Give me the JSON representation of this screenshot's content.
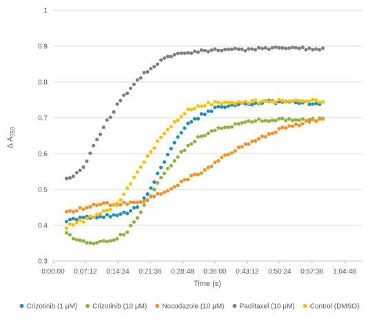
{
  "chart_data": {
    "type": "scatter",
    "title": "",
    "xlabel": "Time (s)",
    "ylabel": "Δ A350",
    "ylabel_main": "Δ A",
    "ylabel_sub": "350",
    "x_unit": "h:mm:ss",
    "xlim": [
      0,
      4128
    ],
    "ylim": [
      0.3,
      1.0
    ],
    "x_ticks": [
      {
        "value": 0,
        "label": "0:00:00"
      },
      {
        "value": 432,
        "label": "0:07:12"
      },
      {
        "value": 864,
        "label": "0:14:24"
      },
      {
        "value": 1296,
        "label": "0:21:36"
      },
      {
        "value": 1728,
        "label": "0:28:48"
      },
      {
        "value": 2160,
        "label": "0:36:00"
      },
      {
        "value": 2592,
        "label": "0:43:12"
      },
      {
        "value": 3024,
        "label": "0:50:24"
      },
      {
        "value": 3456,
        "label": "0:57:36"
      },
      {
        "value": 3888,
        "label": "1:04:48"
      }
    ],
    "y_ticks": [
      {
        "value": 0.3,
        "label": "0.3"
      },
      {
        "value": 0.4,
        "label": "0.4"
      },
      {
        "value": 0.5,
        "label": "0.5"
      },
      {
        "value": 0.6,
        "label": "0.6"
      },
      {
        "value": 0.7,
        "label": "0.7"
      },
      {
        "value": 0.8,
        "label": "0.8"
      },
      {
        "value": 0.9,
        "label": "0.9"
      },
      {
        "value": 1.0,
        "label": "1"
      }
    ],
    "grid": "horizontal",
    "legend_position": "bottom",
    "series": [
      {
        "name": "Crizotinib (1 μM)",
        "color": "#1f8fc1",
        "x": [
          180,
          420,
          660,
          900,
          1080,
          1200,
          1320,
          1440,
          1560,
          1680,
          1800,
          1920,
          2040,
          2160,
          2400,
          2640,
          2880,
          3120,
          3360,
          3600
        ],
        "y": [
          0.415,
          0.42,
          0.425,
          0.43,
          0.445,
          0.47,
          0.51,
          0.56,
          0.61,
          0.65,
          0.68,
          0.7,
          0.715,
          0.725,
          0.735,
          0.74,
          0.745,
          0.745,
          0.742,
          0.74
        ]
      },
      {
        "name": "Crizotinib (10 μM)",
        "color": "#8db33a",
        "x": [
          180,
          360,
          540,
          720,
          900,
          1020,
          1140,
          1260,
          1380,
          1500,
          1620,
          1740,
          1860,
          1980,
          2160,
          2400,
          2640,
          2880,
          3120,
          3360,
          3600
        ],
        "y": [
          0.375,
          0.355,
          0.35,
          0.355,
          0.37,
          0.39,
          0.43,
          0.47,
          0.51,
          0.55,
          0.58,
          0.61,
          0.63,
          0.65,
          0.665,
          0.68,
          0.69,
          0.695,
          0.695,
          0.695,
          0.695
        ]
      },
      {
        "name": "Nocodazole (10 μM)",
        "color": "#f39325",
        "x": [
          180,
          360,
          540,
          720,
          900,
          1080,
          1260,
          1440,
          1620,
          1800,
          1980,
          2160,
          2340,
          2520,
          2700,
          2880,
          3060,
          3240,
          3420,
          3600
        ],
        "y": [
          0.435,
          0.445,
          0.455,
          0.46,
          0.46,
          0.46,
          0.47,
          0.49,
          0.51,
          0.53,
          0.55,
          0.575,
          0.6,
          0.62,
          0.64,
          0.655,
          0.67,
          0.68,
          0.69,
          0.7
        ]
      },
      {
        "name": "Paclitaxel (10 μM)",
        "color": "#808080",
        "x": [
          180,
          300,
          420,
          540,
          660,
          780,
          900,
          1020,
          1140,
          1260,
          1380,
          1500,
          1620,
          1740,
          1980,
          2220,
          2460,
          2700,
          2940,
          3180,
          3420,
          3600
        ],
        "y": [
          0.53,
          0.54,
          0.57,
          0.62,
          0.67,
          0.71,
          0.75,
          0.78,
          0.81,
          0.83,
          0.85,
          0.865,
          0.875,
          0.883,
          0.887,
          0.888,
          0.89,
          0.892,
          0.894,
          0.893,
          0.893,
          0.893
        ]
      },
      {
        "name": "Control (DMSO)",
        "color": "#ffc000",
        "x": [
          180,
          360,
          540,
          720,
          840,
          960,
          1080,
          1200,
          1320,
          1440,
          1560,
          1680,
          1800,
          1920,
          2040,
          2160,
          2400,
          2640,
          2880,
          3120,
          3360,
          3600
        ],
        "y": [
          0.395,
          0.41,
          0.425,
          0.44,
          0.46,
          0.49,
          0.53,
          0.57,
          0.61,
          0.645,
          0.675,
          0.7,
          0.72,
          0.733,
          0.738,
          0.742,
          0.743,
          0.745,
          0.745,
          0.748,
          0.748,
          0.748
        ]
      }
    ]
  }
}
